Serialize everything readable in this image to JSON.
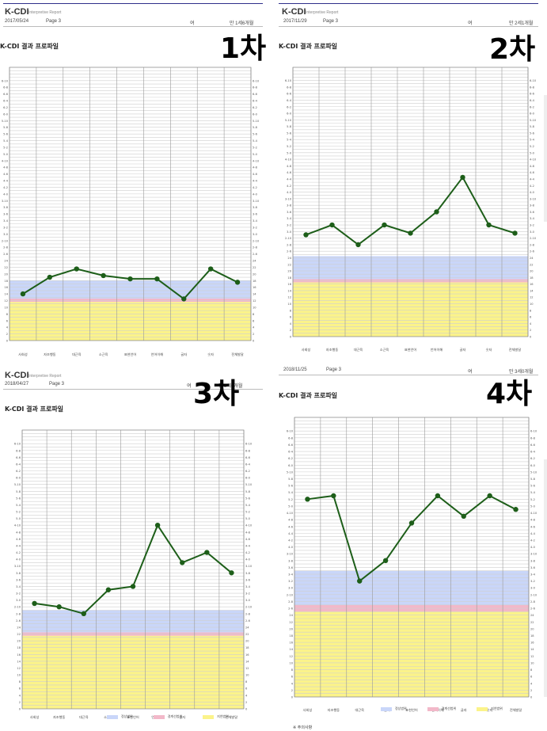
{
  "common": {
    "app_title": "K-CDI",
    "app_subtitle": "Interpretive Report",
    "section_title": "K-CDI 결과 프로파일",
    "legend": [
      "정상범위",
      "경계선범위",
      "지연범위"
    ],
    "colors": {
      "normal": "#c9d6f9",
      "borderline": "#f2b8c9",
      "delay": "#fbf38a",
      "line": "#1d5e19",
      "grid": "#cfcfcf"
    },
    "footnote": "※ 주의사항"
  },
  "panels": [
    {
      "badge": "1차",
      "date": "2017/05/24",
      "page": "Page 3",
      "gender": "여",
      "age": "만 1세6개월"
    },
    {
      "badge": "2차",
      "date": "2017/11/29",
      "page": "Page 3",
      "gender": "여",
      "age": "만 2세1개월"
    },
    {
      "badge": "3차",
      "date": "2018/04/27",
      "page": "Page 3",
      "gender": "여",
      "age": "만 2세6개월"
    },
    {
      "badge": "4차",
      "date": "2018/11/25",
      "page": "Page 3",
      "gender": "여",
      "age": "만 3세0개월"
    }
  ],
  "chart_data": [
    {
      "type": "line",
      "title": "K-CDI 결과 프로파일",
      "categories": [
        "사회성",
        "자조행동",
        "대근육",
        "소근육",
        "표현언어",
        "언어이해",
        "글자",
        "숫자",
        "전체발달"
      ],
      "y_ticks": [
        "0",
        "2",
        "4",
        "6",
        "8",
        "10",
        "12",
        "14",
        "16",
        "18",
        "20",
        "22",
        "24",
        "2-6",
        "2-8",
        "2-10",
        "3-0",
        "3-2",
        "3-4",
        "3-6",
        "3-8",
        "3-10",
        "4-0",
        "4-2",
        "4-4",
        "4-6",
        "4-8",
        "4-10",
        "5-0",
        "5-2",
        "5-4",
        "5-6",
        "5-8",
        "5-10",
        "6-0",
        "6-2",
        "6-4",
        "6-6",
        "6-8",
        "6-10"
      ],
      "ylim": [
        0,
        82
      ],
      "normal_band": [
        12.6,
        18
      ],
      "borderline_band": [
        11.6,
        12.6
      ],
      "series": [
        {
          "values": [
            14,
            19,
            21.5,
            19.5,
            18.5,
            18.5,
            12.5,
            21.5,
            17.5
          ]
        }
      ]
    },
    {
      "type": "line",
      "title": "K-CDI 결과 프로파일",
      "categories": [
        "사회성",
        "자조행동",
        "대근육",
        "소근육",
        "표현언어",
        "언어이해",
        "글자",
        "숫자",
        "전체발달"
      ],
      "y_ticks": [
        "0",
        "2",
        "4",
        "6",
        "8",
        "10",
        "12",
        "14",
        "16",
        "18",
        "20",
        "22",
        "24",
        "2-6",
        "2-8",
        "2-10",
        "3-0",
        "3-2",
        "3-4",
        "3-6",
        "3-8",
        "3-10",
        "4-0",
        "4-2",
        "4-4",
        "4-6",
        "4-8",
        "4-10",
        "5-0",
        "5-2",
        "5-4",
        "5-6",
        "5-8",
        "5-10",
        "6-0",
        "6-2",
        "6-4",
        "6-6",
        "6-8",
        "6-10"
      ],
      "ylim": [
        0,
        82
      ],
      "normal_band": [
        17.5,
        24.5
      ],
      "borderline_band": [
        16.5,
        17.5
      ],
      "series": [
        {
          "values": [
            31,
            34,
            28,
            34,
            31.5,
            38,
            48.5,
            34,
            31.5
          ]
        }
      ]
    },
    {
      "type": "line",
      "title": "K-CDI 결과 프로파일",
      "categories": [
        "사회성",
        "자조행동",
        "대근육",
        "소근육",
        "표현언어",
        "언어이해",
        "글자",
        "숫자",
        "전체발달"
      ],
      "y_ticks": [
        "0",
        "2",
        "4",
        "6",
        "8",
        "10",
        "12",
        "14",
        "16",
        "18",
        "20",
        "22",
        "24",
        "2-6",
        "2-8",
        "2-10",
        "3-0",
        "3-2",
        "3-4",
        "3-6",
        "3-8",
        "3-10",
        "4-0",
        "4-2",
        "4-4",
        "4-6",
        "4-8",
        "4-10",
        "5-0",
        "5-2",
        "5-4",
        "5-6",
        "5-8",
        "5-10",
        "6-0",
        "6-2",
        "6-4",
        "6-6",
        "6-8",
        "6-10"
      ],
      "ylim": [
        0,
        82
      ],
      "normal_band": [
        22.5,
        29
      ],
      "borderline_band": [
        21.5,
        22.5
      ],
      "series": [
        {
          "values": [
            31,
            30,
            28,
            35,
            36,
            54,
            43,
            46,
            40
          ]
        }
      ]
    },
    {
      "type": "line",
      "title": "K-CDI 결과 프로파일",
      "categories": [
        "사회성",
        "자조행동",
        "대근육",
        "소근육",
        "표현언어",
        "언어이해",
        "글자",
        "숫자",
        "전체발달"
      ],
      "y_ticks": [
        "0",
        "2",
        "4",
        "6",
        "8",
        "10",
        "12",
        "14",
        "16",
        "18",
        "20",
        "22",
        "24",
        "2-6",
        "2-8",
        "2-10",
        "3-0",
        "3-2",
        "3-4",
        "3-6",
        "3-8",
        "3-10",
        "4-0",
        "4-2",
        "4-4",
        "4-6",
        "4-8",
        "4-10",
        "5-0",
        "5-2",
        "5-4",
        "5-6",
        "5-8",
        "5-10",
        "6-0",
        "6-2",
        "6-4",
        "6-6",
        "6-8",
        "6-10"
      ],
      "ylim": [
        0,
        82
      ],
      "normal_band": [
        27,
        37
      ],
      "borderline_band": [
        25,
        27
      ],
      "series": [
        {
          "values": [
            58,
            59,
            34,
            40,
            51,
            59,
            53,
            59,
            55
          ]
        }
      ]
    }
  ]
}
